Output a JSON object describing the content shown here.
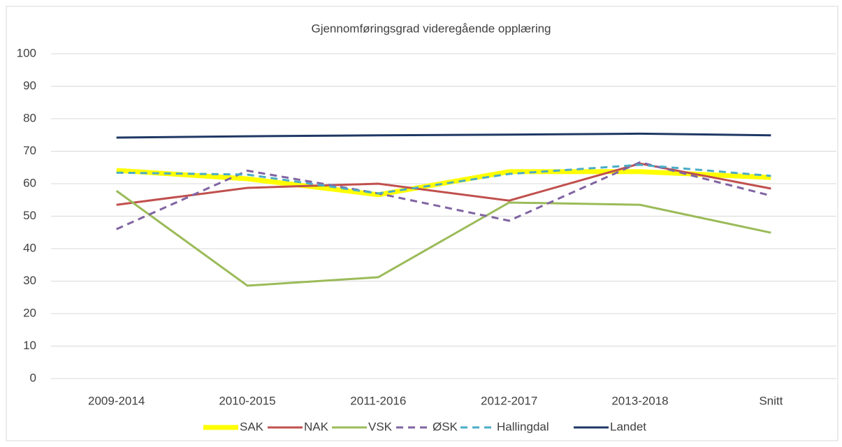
{
  "chart_data": {
    "type": "line",
    "title": "Gjennomføringsgrad videregående opplæring",
    "categories": [
      "2009-2014",
      "2010-2015",
      "2011-2016",
      "2012-2017",
      "2013-2018",
      "Snitt"
    ],
    "series": [
      {
        "name": "SAK",
        "color": "#ffff00",
        "width": 7,
        "dashed": false,
        "values": [
          64.1,
          61.5,
          56.6,
          63.7,
          63.7,
          61.9
        ]
      },
      {
        "name": "NAK",
        "color": "#c0504d",
        "width": 3,
        "dashed": false,
        "values": [
          53.5,
          58.7,
          60,
          54.8,
          66.2,
          58.5
        ]
      },
      {
        "name": "VSK",
        "color": "#9bbb59",
        "width": 3,
        "dashed": false,
        "values": [
          57.8,
          28.6,
          31.2,
          54.2,
          53.5,
          44.9
        ]
      },
      {
        "name": "ØSK",
        "color": "#8064a2",
        "width": 3,
        "dashed": true,
        "values": [
          46,
          64,
          57,
          48.6,
          66.6,
          56.3
        ]
      },
      {
        "name": "Hallingdal",
        "color": "#4bacc6",
        "width": 3,
        "dashed": true,
        "values": [
          63.4,
          62.8,
          57,
          63,
          65.8,
          62.4
        ]
      },
      {
        "name": "Landet",
        "color": "#1f3864",
        "width": 3,
        "dashed": false,
        "values": [
          74.2,
          74.6,
          74.9,
          75.1,
          75.4,
          74.9
        ]
      }
    ],
    "ylim": [
      0,
      100
    ],
    "yticks": [
      0,
      10,
      20,
      30,
      40,
      50,
      60,
      70,
      80,
      90,
      100
    ],
    "grid": true,
    "legend": "bottom"
  }
}
